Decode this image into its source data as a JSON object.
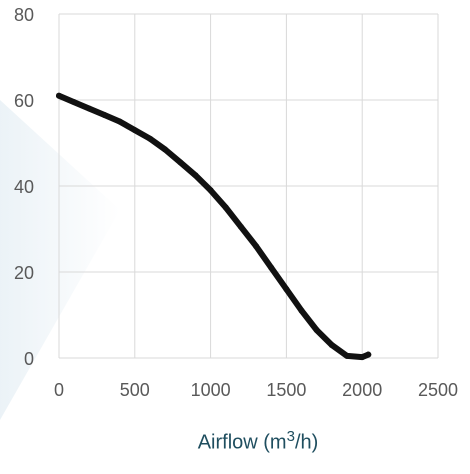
{
  "chart_data": {
    "type": "line",
    "title": "",
    "xlabel_prefix": "Airflow (m",
    "xlabel_sup": "3",
    "xlabel_suffix": "/h)",
    "ylabel": "",
    "xlim": [
      0,
      2500
    ],
    "ylim": [
      0,
      80
    ],
    "xticks": [
      0,
      500,
      1000,
      1500,
      2000,
      2500
    ],
    "yticks": [
      0,
      20,
      40,
      60,
      80
    ],
    "xtick_labels": [
      "0",
      "500",
      "1000",
      "1500",
      "2000",
      "2500"
    ],
    "ytick_labels": [
      "0",
      "20",
      "40",
      "60",
      "80"
    ],
    "grid": true,
    "line_color": "#111111",
    "grid_color": "#d9d9d9",
    "series": [
      {
        "x": [
          0,
          100,
          200,
          300,
          400,
          500,
          600,
          700,
          800,
          900,
          1000,
          1100,
          1200,
          1300,
          1400,
          1500,
          1600,
          1700,
          1800,
          1900,
          2000,
          2040
        ],
        "values": [
          61,
          59.5,
          58,
          56.5,
          55,
          53,
          51,
          48.5,
          45.5,
          42.5,
          39,
          35,
          30.5,
          26,
          21,
          16,
          11,
          6.5,
          3,
          0.5,
          0.2,
          0.8
        ]
      }
    ]
  }
}
